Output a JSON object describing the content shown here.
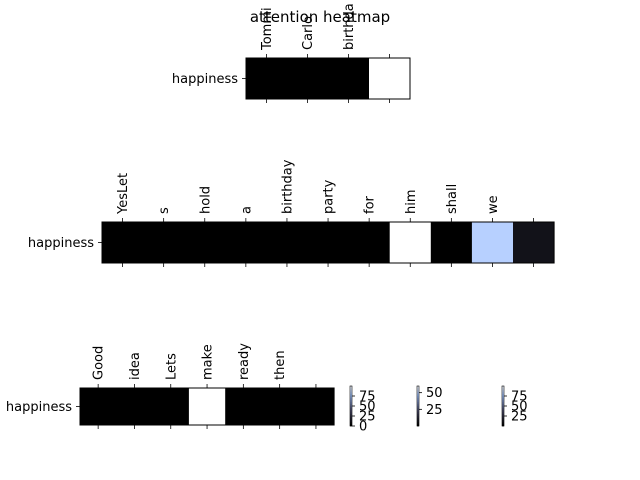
{
  "chart_data": [
    {
      "type": "heatmap",
      "title": "attention heatmap",
      "rows": [
        "happiness"
      ],
      "columns": [
        "Tommi",
        "Carlo",
        "birthda",
        ""
      ],
      "values": [
        [
          0,
          0,
          0,
          100
        ]
      ],
      "colormap": "bone",
      "colorbar": {
        "ticks": [
          25,
          50,
          75
        ],
        "range": [
          0,
          100
        ]
      }
    },
    {
      "type": "heatmap",
      "title": "",
      "rows": [
        "happiness"
      ],
      "columns": [
        "YesLet",
        "s",
        "hold",
        "a",
        "birthday",
        "party",
        "for",
        "him",
        "shall",
        "we",
        ""
      ],
      "values": [
        [
          0,
          0,
          0,
          0,
          0,
          0,
          0,
          60,
          0,
          48,
          5
        ]
      ],
      "colormap": "bone",
      "colorbar": {
        "ticks": [
          25,
          50
        ],
        "range": [
          0,
          60
        ]
      }
    },
    {
      "type": "heatmap",
      "title": "",
      "rows": [
        "happiness"
      ],
      "columns": [
        "Good",
        "idea",
        "Lets",
        "make",
        "ready",
        "then",
        ""
      ],
      "values": [
        [
          0,
          0,
          0,
          100,
          0,
          0,
          0
        ]
      ],
      "colormap": "bone",
      "colorbar": {
        "ticks": [
          0,
          25,
          50,
          75
        ],
        "range": [
          0,
          100
        ]
      }
    }
  ]
}
